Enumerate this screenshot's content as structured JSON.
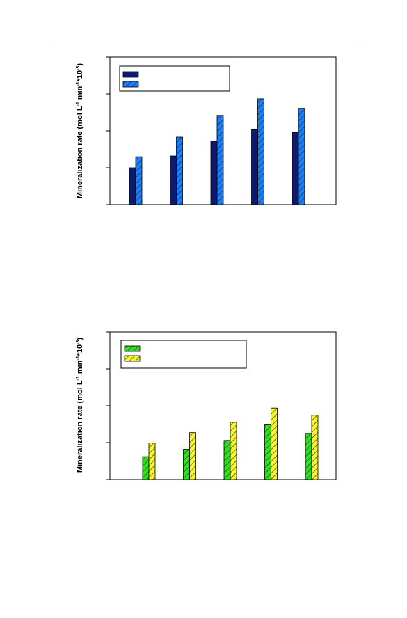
{
  "chart_data": [
    {
      "type": "bar",
      "categories": [
        "",
        "",
        "",
        "",
        ""
      ],
      "series": [
        {
          "name": "",
          "values": [
            1.0,
            1.32,
            1.72,
            2.03,
            1.96
          ],
          "color": "#0d1a6e",
          "pattern": "solid"
        },
        {
          "name": "",
          "values": [
            1.3,
            1.83,
            2.42,
            2.87,
            2.61
          ],
          "color": "#1e7ff0",
          "pattern": "hatched"
        }
      ],
      "title": "",
      "xlabel": "",
      "ylabel": "Mineralization rate (mol L-1 min-1 * 10-3)",
      "ylim": [
        0,
        4
      ],
      "yticks": [
        0,
        1,
        2,
        3,
        4
      ],
      "legend": "top-left",
      "grid": false
    },
    {
      "type": "bar",
      "categories": [
        "",
        "",
        "",
        "",
        ""
      ],
      "series": [
        {
          "name": "",
          "values": [
            0.62,
            0.82,
            1.06,
            1.5,
            1.25
          ],
          "color": "#33dd22",
          "pattern": "hatched"
        },
        {
          "name": "",
          "values": [
            0.99,
            1.27,
            1.55,
            1.94,
            1.74
          ],
          "color": "#f5f532",
          "pattern": "hatched"
        }
      ],
      "title": "",
      "xlabel": "",
      "ylabel": "Mineralization rate (mol L-1 min-1 * 10-3)",
      "ylim": [
        0,
        4
      ],
      "yticks": [
        0,
        1,
        2,
        3,
        4
      ],
      "legend": "top-left",
      "grid": false
    }
  ]
}
